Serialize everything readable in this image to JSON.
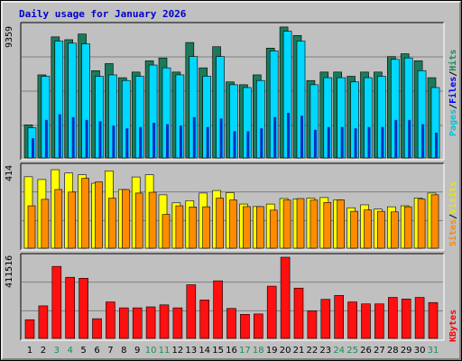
{
  "title": "Daily usage for January 2026",
  "max_labels": {
    "top": "9359",
    "middle": "414",
    "bottom": "411516"
  },
  "legend": {
    "top": [
      {
        "text": "Pages",
        "color": "#00c4d8"
      },
      {
        "text": "/",
        "color": "#000000"
      },
      {
        "text": "Files",
        "color": "#0000ff"
      },
      {
        "text": "/",
        "color": "#000000"
      },
      {
        "text": "Hits",
        "color": "#1b8b5a"
      }
    ],
    "middle": [
      {
        "text": "Sites",
        "color": "#ff8800"
      },
      {
        "text": "/",
        "color": "#000000"
      },
      {
        "text": "Visits",
        "color": "#e8e800"
      }
    ],
    "bottom": [
      {
        "text": "KBytes",
        "color": "#ff0000"
      }
    ]
  },
  "colors": {
    "hits": "#1b7a5a",
    "files": "#00d8ff",
    "pages": "#0030c0",
    "visits": "#ffff00",
    "sites": "#ff8c00",
    "kbytes": "#ff1010",
    "weekday_label": "#000000",
    "weekend_label": "#1b8b5a"
  },
  "chart_data": [
    {
      "type": "bar",
      "title": "Daily usage for January 2026",
      "categories": [
        "1",
        "2",
        "3",
        "4",
        "5",
        "6",
        "7",
        "8",
        "9",
        "10",
        "11",
        "12",
        "13",
        "14",
        "15",
        "16",
        "17",
        "18",
        "19",
        "20",
        "21",
        "22",
        "23",
        "24",
        "25",
        "26",
        "27",
        "28",
        "29",
        "30",
        "31"
      ],
      "weekend_days": [
        "3",
        "4",
        "10",
        "11",
        "17",
        "18",
        "24",
        "25",
        "31"
      ],
      "ylim": [
        0,
        9359
      ],
      "series": [
        {
          "name": "Hits",
          "values": [
            2350,
            5900,
            8600,
            8400,
            8800,
            6200,
            6700,
            5700,
            6100,
            6900,
            7100,
            6100,
            8200,
            6400,
            7900,
            5400,
            5200,
            5900,
            7800,
            9300,
            8700,
            5500,
            6100,
            6100,
            5800,
            6100,
            6100,
            7200,
            7400,
            6900,
            5700
          ]
        },
        {
          "name": "Files",
          "values": [
            2150,
            5800,
            8300,
            8150,
            8100,
            5800,
            5900,
            5500,
            5800,
            6600,
            6400,
            5900,
            7200,
            5800,
            7200,
            5200,
            5000,
            5500,
            7600,
            9000,
            8300,
            5200,
            5700,
            5700,
            5400,
            5700,
            5800,
            7000,
            7100,
            6200,
            5000
          ]
        },
        {
          "name": "Pages",
          "values": [
            1400,
            2700,
            3100,
            2900,
            2700,
            2600,
            2300,
            2100,
            2200,
            2500,
            2400,
            2300,
            2900,
            2200,
            2800,
            1900,
            1900,
            2100,
            2900,
            3200,
            3000,
            2000,
            2200,
            2200,
            2100,
            2200,
            2200,
            2700,
            2700,
            2400,
            1800
          ]
        }
      ]
    },
    {
      "type": "bar",
      "categories": [
        "1",
        "2",
        "3",
        "4",
        "5",
        "6",
        "7",
        "8",
        "9",
        "10",
        "11",
        "12",
        "13",
        "14",
        "15",
        "16",
        "17",
        "18",
        "19",
        "20",
        "21",
        "22",
        "23",
        "24",
        "25",
        "26",
        "27",
        "28",
        "29",
        "30",
        "31"
      ],
      "ylim": [
        0,
        414
      ],
      "series": [
        {
          "name": "Visits",
          "values": [
            364,
            350,
            400,
            383,
            374,
            331,
            394,
            299,
            363,
            374,
            272,
            231,
            242,
            281,
            294,
            283,
            225,
            212,
            225,
            253,
            251,
            255,
            258,
            246,
            206,
            221,
            199,
            211,
            216,
            255,
            281
          ]
        },
        {
          "name": "Sites",
          "values": [
            216,
            249,
            299,
            286,
            356,
            338,
            255,
            299,
            281,
            285,
            172,
            216,
            210,
            211,
            255,
            246,
            212,
            212,
            194,
            245,
            253,
            245,
            233,
            246,
            188,
            195,
            188,
            185,
            211,
            250,
            272
          ]
        }
      ]
    },
    {
      "type": "bar",
      "categories": [
        "1",
        "2",
        "3",
        "4",
        "5",
        "6",
        "7",
        "8",
        "9",
        "10",
        "11",
        "12",
        "13",
        "14",
        "15",
        "16",
        "17",
        "18",
        "19",
        "20",
        "21",
        "22",
        "23",
        "24",
        "25",
        "26",
        "27",
        "28",
        "29",
        "30",
        "31"
      ],
      "ylim": [
        0,
        411516
      ],
      "series": [
        {
          "name": "KBytes",
          "values": [
            95000,
            165000,
            365000,
            310000,
            305000,
            100000,
            185000,
            155000,
            155000,
            160000,
            170000,
            155000,
            272000,
            195000,
            292000,
            152000,
            122000,
            124000,
            265000,
            411516,
            255000,
            140000,
            198000,
            218000,
            185000,
            175000,
            175000,
            208000,
            200000,
            208000,
            182000
          ]
        }
      ]
    }
  ]
}
